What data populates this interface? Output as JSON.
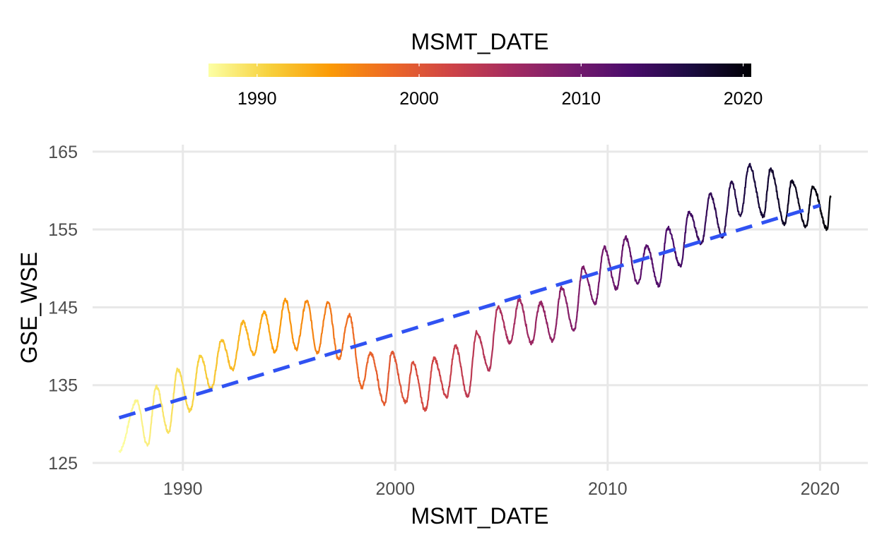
{
  "chart_data": {
    "type": "line",
    "title": "",
    "xlabel": "MSMT_DATE",
    "ylabel": "GSE_WSE",
    "xlim": [
      "1985-10-01",
      "2022-04-01"
    ],
    "ylim": [
      124,
      165.9
    ],
    "x_ticks": [
      {
        "value": "1990-01-01",
        "label": "1990"
      },
      {
        "value": "2000-01-01",
        "label": "2000"
      },
      {
        "value": "2010-01-01",
        "label": "2010"
      },
      {
        "value": "2020-01-01",
        "label": "2020"
      }
    ],
    "y_ticks": [
      {
        "value": 125,
        "label": "125"
      },
      {
        "value": 135,
        "label": "135"
      },
      {
        "value": 145,
        "label": "145"
      },
      {
        "value": 155,
        "label": "155"
      },
      {
        "value": 165,
        "label": "165"
      }
    ],
    "grid": true,
    "legend": {
      "title": "MSMT_DATE",
      "position": "top",
      "type": "colorbar",
      "range": [
        "1987-01-01",
        "2020-07-01"
      ],
      "palette": "inferno (reversed)",
      "stops": [
        "#fcffa4",
        "#f7d13d",
        "#fb9b06",
        "#ed6925",
        "#cf4446",
        "#a52c60",
        "#781c6d",
        "#4a0c6b",
        "#1b0c41",
        "#000004"
      ],
      "ticks": [
        {
          "value": "1990-01-01",
          "label": "1990"
        },
        {
          "value": "2000-01-01",
          "label": "2000"
        },
        {
          "value": "2010-01-01",
          "label": "2010"
        },
        {
          "value": "2020-01-01",
          "label": "2020"
        }
      ]
    },
    "series": [
      {
        "kind": "line",
        "color_by": "x",
        "seasonal_peaks": [
          [
            "1987-11-01",
            133.0
          ],
          [
            "1988-10-01",
            134.8
          ],
          [
            "1989-10-01",
            137.0
          ],
          [
            "1990-11-01",
            138.8
          ],
          [
            "1991-11-01",
            140.8
          ],
          [
            "1992-11-01",
            143.1
          ],
          [
            "1993-11-01",
            144.4
          ],
          [
            "1994-11-01",
            146.0
          ],
          [
            "1995-11-01",
            145.8
          ],
          [
            "1996-11-01",
            145.6
          ],
          [
            "1997-11-01",
            144.0
          ],
          [
            "1998-11-01",
            139.1
          ],
          [
            "1999-11-01",
            139.2
          ],
          [
            "2000-11-01",
            137.9
          ],
          [
            "2001-11-01",
            138.4
          ],
          [
            "2002-11-01",
            140.0
          ],
          [
            "2003-11-01",
            141.8
          ],
          [
            "2004-11-01",
            145.0
          ],
          [
            "2005-11-01",
            146.0
          ],
          [
            "2006-11-01",
            145.6
          ],
          [
            "2007-11-01",
            147.5
          ],
          [
            "2008-11-01",
            150.1
          ],
          [
            "2009-11-01",
            152.7
          ],
          [
            "2010-11-01",
            154.0
          ],
          [
            "2011-11-01",
            152.9
          ],
          [
            "2012-11-01",
            155.2
          ],
          [
            "2013-11-01",
            157.2
          ],
          [
            "2014-11-01",
            159.5
          ],
          [
            "2015-11-01",
            161.2
          ],
          [
            "2016-09-01",
            163.3
          ],
          [
            "2017-09-01",
            162.8
          ],
          [
            "2018-09-01",
            161.2
          ],
          [
            "2019-09-01",
            160.5
          ]
        ],
        "seasonal_troughs": [
          [
            "1987-01-01",
            126.5
          ],
          [
            "1988-05-01",
            127.2
          ],
          [
            "1989-05-01",
            129.0
          ],
          [
            "1990-05-01",
            131.7
          ],
          [
            "1991-05-01",
            134.5
          ],
          [
            "1992-05-01",
            137.0
          ],
          [
            "1993-05-01",
            139.0
          ],
          [
            "1994-05-01",
            139.2
          ],
          [
            "1995-05-01",
            139.6
          ],
          [
            "1996-05-01",
            139.2
          ],
          [
            "1997-05-01",
            138.3
          ],
          [
            "1998-06-01",
            134.7
          ],
          [
            "1999-07-01",
            132.6
          ],
          [
            "2000-07-01",
            132.8
          ],
          [
            "2001-06-01",
            131.8
          ],
          [
            "2002-06-01",
            133.5
          ],
          [
            "2003-06-01",
            133.5
          ],
          [
            "2004-06-01",
            137.0
          ],
          [
            "2005-06-01",
            140.4
          ],
          [
            "2006-06-01",
            140.4
          ],
          [
            "2007-06-01",
            140.7
          ],
          [
            "2008-06-01",
            142.0
          ],
          [
            "2009-06-01",
            145.5
          ],
          [
            "2010-06-01",
            147.4
          ],
          [
            "2011-06-01",
            148.0
          ],
          [
            "2012-06-01",
            147.8
          ],
          [
            "2013-06-01",
            150.3
          ],
          [
            "2014-06-01",
            153.2
          ],
          [
            "2015-06-01",
            154.0
          ],
          [
            "2016-04-01",
            156.7
          ],
          [
            "2017-05-01",
            156.7
          ],
          [
            "2018-05-01",
            155.7
          ],
          [
            "2019-05-01",
            155.4
          ],
          [
            "2020-05-01",
            155.1
          ]
        ],
        "last_point": [
          "2020-07-01",
          159.2
        ]
      },
      {
        "kind": "linear-trend",
        "style": "dashed",
        "color": "#3052f2",
        "x": [
          "1987-01-01",
          "2020-01-01"
        ],
        "y": [
          130.8,
          158.1
        ]
      }
    ]
  }
}
